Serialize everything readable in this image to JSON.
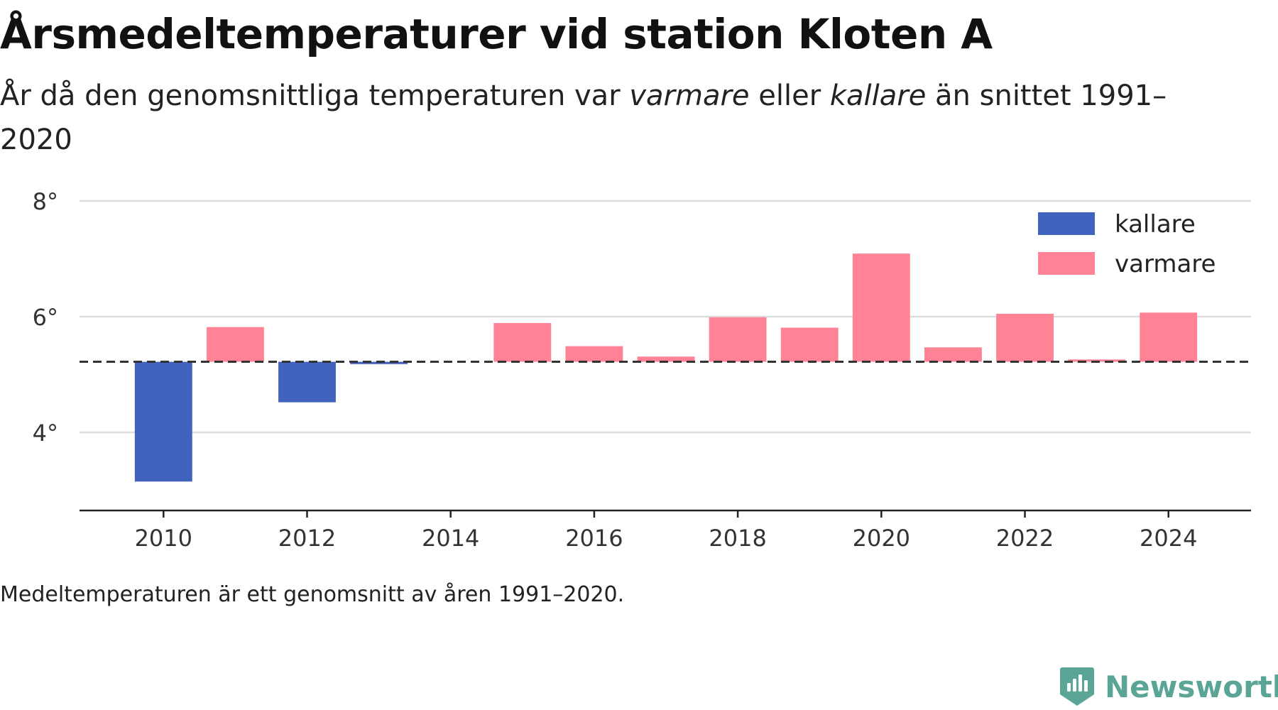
{
  "header": {
    "title": "Årsmedeltemperaturer vid station Kloten A",
    "subtitle_part1": "År då den genomsnittliga temperaturen var ",
    "subtitle_em1": "varmare",
    "subtitle_part2": " eller ",
    "subtitle_em2": "kallare",
    "subtitle_part3": " än snittet 1991–2020"
  },
  "chart_data": {
    "type": "bar",
    "title": "Årsmedeltemperaturer vid station Kloten A",
    "subtitle": "År då den genomsnittliga temperaturen var varmare eller kallare än snittet 1991–2020",
    "xlabel": "",
    "ylabel": "",
    "baseline": 5.22,
    "baseline_style": "dashed",
    "ylim": [
      2.65,
      8.0
    ],
    "yticks": [
      4,
      6,
      8
    ],
    "ytick_labels": [
      "4°",
      "6°",
      "8°"
    ],
    "xticks": [
      2010,
      2012,
      2014,
      2016,
      2018,
      2020,
      2022,
      2024
    ],
    "xtick_labels": [
      "2010",
      "2012",
      "2014",
      "2016",
      "2018",
      "2020",
      "2022",
      "2024"
    ],
    "grid": true,
    "legend": {
      "position": "top-right",
      "entries": [
        "kallare",
        "varmare"
      ]
    },
    "colors": {
      "kallare": "#4263bd",
      "varmare": "#ff8395"
    },
    "bars": [
      {
        "year": 2010,
        "value": 3.15,
        "category": "kallare"
      },
      {
        "year": 2011,
        "value": 5.82,
        "category": "varmare"
      },
      {
        "year": 2012,
        "value": 4.52,
        "category": "kallare"
      },
      {
        "year": 2013,
        "value": 5.18,
        "category": "kallare"
      },
      {
        "year": 2015,
        "value": 5.89,
        "category": "varmare"
      },
      {
        "year": 2016,
        "value": 5.49,
        "category": "varmare"
      },
      {
        "year": 2017,
        "value": 5.31,
        "category": "varmare"
      },
      {
        "year": 2018,
        "value": 5.99,
        "category": "varmare"
      },
      {
        "year": 2019,
        "value": 5.81,
        "category": "varmare"
      },
      {
        "year": 2020,
        "value": 7.09,
        "category": "varmare"
      },
      {
        "year": 2021,
        "value": 5.47,
        "category": "varmare"
      },
      {
        "year": 2022,
        "value": 6.05,
        "category": "varmare"
      },
      {
        "year": 2023,
        "value": 5.26,
        "category": "varmare"
      },
      {
        "year": 2024,
        "value": 6.07,
        "category": "varmare"
      }
    ]
  },
  "footer": {
    "note": "Medeltemperaturen är ett genomsnitt av åren 1991–2020.",
    "brand": "Newsworthy",
    "brand_color": "#5aa596",
    "brand_icon": "newsworthy-logo-icon"
  }
}
